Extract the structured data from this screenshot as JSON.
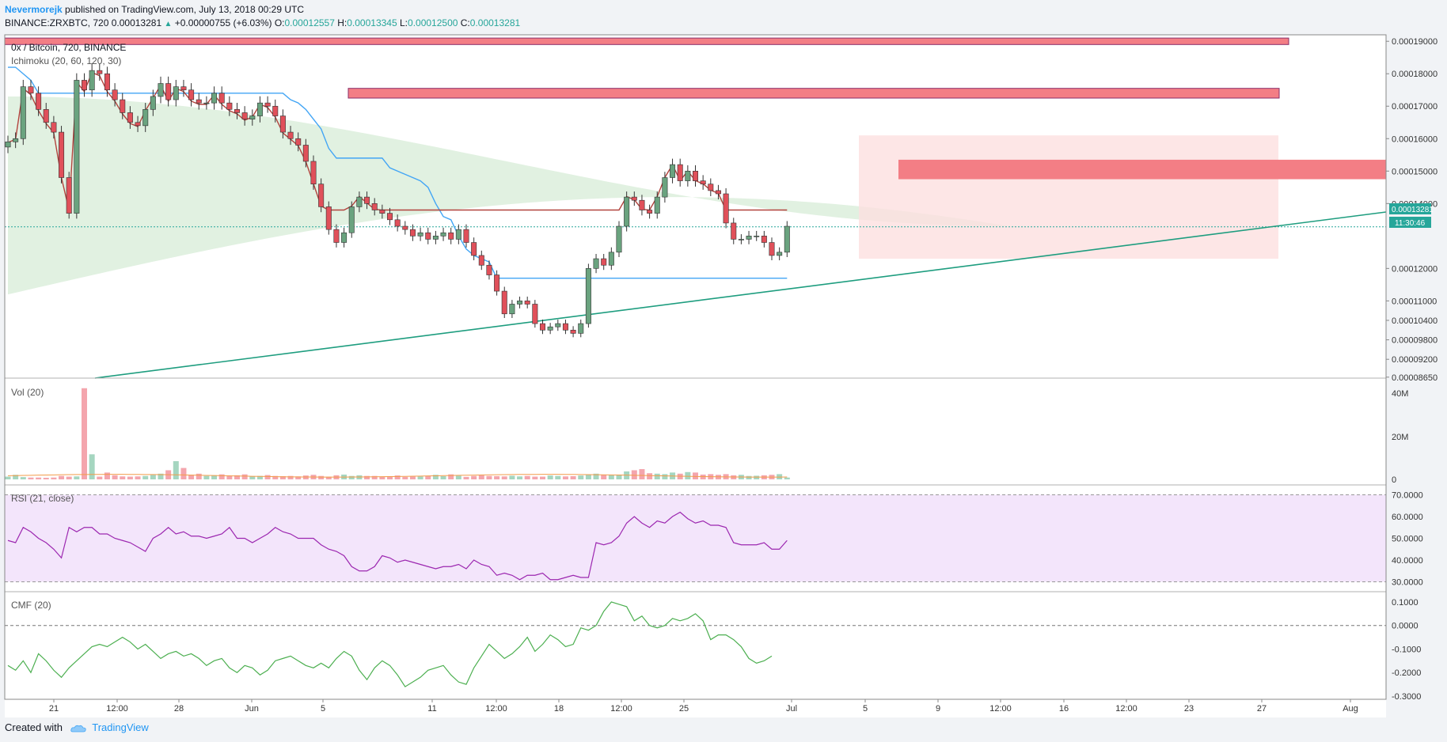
{
  "header": {
    "author": "Nevermorejk",
    "published": " published on TradingView.com, July 13, 2018 00:29 UTC"
  },
  "symbol_line": {
    "symbol": "BINANCE:ZRXBTC, 720",
    "last": "0.00013281",
    "change": "+0.00000755 (+6.03%)",
    "o_label": "O:",
    "o": "0.00012557",
    "h_label": "H:",
    "h": "0.00013345",
    "l_label": "L:",
    "l": "0.00012500",
    "c_label": "C:",
    "c": "0.00013281"
  },
  "panes": {
    "main_title": "0x / Bitcoin, 720, BINANCE",
    "ichimoku": "Ichimoku (20, 60, 120, 30)",
    "vol": "Vol (20)",
    "rsi": "RSI (21, close)",
    "cmf": "CMF (20)"
  },
  "last_price_tag": "0.00013281",
  "countdown_tag": "11:30:46",
  "footer": {
    "created": "Created with",
    "brand": "TradingView"
  },
  "colors": {
    "up": "#26a69a",
    "up_body": "#6aa37f",
    "down": "#e0505a",
    "kijun": "#b2433d",
    "tenkan": "#42a5f5",
    "cloud_green": "#dcefdc",
    "cloud_red": "#fde0e0",
    "zone": "#f37e85",
    "trend": "#1e9d7f",
    "rsi_line": "#9c27b0",
    "rsi_bg": "#f3e5fb",
    "cmf_line": "#4caf50"
  },
  "chart_data": [
    {
      "type": "candlestick",
      "title": "0x / Bitcoin, 720, BINANCE",
      "indicator": "Ichimoku (20, 60, 120, 30)",
      "price_axis_ticks": [
        "0.00019000",
        "0.00018000",
        "0.00017000",
        "0.00016000",
        "0.00015000",
        "0.00014000",
        "0.00013281",
        "0.00012000",
        "0.00011000",
        "0.00010400",
        "0.00009800",
        "0.00009200",
        "0.00008650"
      ],
      "time_axis_ticks": [
        "21",
        "12:00",
        "28",
        "Jun",
        "5",
        "11",
        "12:00",
        "18",
        "12:00",
        "25",
        "Jul",
        "5",
        "9",
        "12:00",
        "16",
        "12:00",
        "23",
        "27",
        "Aug"
      ],
      "ylim": [
        8.62e-05,
        0.000192
      ],
      "close": [
        0.000159,
        0.00016,
        0.000176,
        0.000174,
        0.000169,
        0.000165,
        0.000162,
        0.000148,
        0.000137,
        0.000178,
        0.000175,
        0.000181,
        0.00018,
        0.000175,
        0.000172,
        0.000168,
        0.000165,
        0.000164,
        0.000169,
        0.000173,
        0.000177,
        0.000172,
        0.000176,
        0.000175,
        0.000172,
        0.000171,
        0.000171,
        0.000174,
        0.000171,
        0.000169,
        0.000168,
        0.000166,
        0.000167,
        0.000171,
        0.00017,
        0.000167,
        0.000162,
        0.00016,
        0.000158,
        0.000153,
        0.000146,
        0.000139,
        0.000132,
        0.000128,
        0.000131,
        0.000139,
        0.000142,
        0.00014,
        0.000138,
        0.000137,
        0.000135,
        0.000133,
        0.000132,
        0.00013,
        0.000131,
        0.000129,
        0.00013,
        0.000131,
        0.000129,
        0.000132,
        0.000128,
        0.000124,
        0.000121,
        0.000118,
        0.000113,
        0.000106,
        0.000109,
        0.00011,
        0.000109,
        0.000103,
        0.000101,
        0.000102,
        0.000103,
        0.000101,
        0.0001,
        0.000103,
        0.00012,
        0.000123,
        0.000121,
        0.000125,
        0.000133,
        0.000142,
        0.000141,
        0.000138,
        0.000137,
        0.000142,
        0.000148,
        0.000152,
        0.000147,
        0.00015,
        0.000147,
        0.000146,
        0.000144,
        0.000143,
        0.000134,
        0.000129,
        0.000129,
        0.00013,
        0.00013,
        0.000128,
        0.000124,
        0.000125,
        0.000133
      ],
      "tenkan": [
        0.000182,
        0.000182,
        0.00018,
        0.000178,
        0.000174,
        0.000174,
        0.000174,
        0.000174,
        0.000174,
        0.000174,
        0.000174,
        0.000174,
        0.000174,
        0.000174,
        0.000174,
        0.000174,
        0.000174,
        0.000174,
        0.000174,
        0.000174,
        0.000174,
        0.000174,
        0.000174,
        0.000174,
        0.000174,
        0.000174,
        0.000174,
        0.000174,
        0.000174,
        0.000174,
        0.000174,
        0.000174,
        0.000174,
        0.000174,
        0.000174,
        0.000174,
        0.000174,
        0.000172,
        0.000171,
        0.000169,
        0.000166,
        0.000163,
        0.000157,
        0.000154,
        0.000154,
        0.000154,
        0.000154,
        0.000154,
        0.000154,
        0.000154,
        0.000151,
        0.00015,
        0.000149,
        0.000148,
        0.000147,
        0.000145,
        0.00014,
        0.000136,
        0.000135,
        0.00013,
        0.000126,
        0.000124,
        0.000123,
        0.000122,
        0.000117,
        0.000117,
        0.000117,
        0.000117,
        0.000117,
        0.000117,
        0.000117,
        0.000117,
        0.000117,
        0.000117,
        0.000117,
        0.000117,
        0.000117,
        0.000117,
        0.000117,
        0.000117,
        0.000117,
        0.000117,
        0.000117,
        0.000117,
        0.000117,
        0.000117,
        0.000117,
        0.000117,
        0.000117,
        0.000117,
        0.000117,
        0.000117,
        0.000117,
        0.000117,
        0.000117,
        0.000117,
        0.000117,
        0.000117,
        0.000117,
        0.000117,
        0.000117,
        0.000117,
        0.000117
      ],
      "volume": [
        1.2,
        2,
        1,
        0.8,
        0.8,
        0.7,
        0.8,
        1.5,
        1.2,
        1.3,
        40,
        11,
        1.2,
        3,
        1.8,
        1.3,
        1.2,
        1.3,
        1.5,
        2,
        2.5,
        4,
        8,
        5,
        2,
        2.5,
        1.5,
        1.8,
        2.2,
        1.6,
        1.8,
        2.2,
        1.4,
        1.5,
        1.9,
        1.5,
        1.4,
        1.5,
        1.3,
        1.7,
        2,
        1.5,
        1.2,
        1.8,
        2.1,
        1.5,
        1.8,
        1.5,
        1.5,
        1.2,
        1.4,
        1.7,
        1.1,
        1.2,
        1.3,
        1.4,
        2,
        1.4,
        2.2,
        1.6,
        1.1,
        1.5,
        1.8,
        1.5,
        1.4,
        1.3,
        1.6,
        1.3,
        1.5,
        1.2,
        1.2,
        1.7,
        1.5,
        1.3,
        1.4,
        1.7,
        2.2,
        2.5,
        2,
        2,
        2.1,
        3.5,
        4,
        4.5,
        2.7,
        2.5,
        2.3,
        3,
        2.5,
        3.2,
        3,
        2.1,
        2.3,
        2,
        2.3,
        1.8,
        2,
        1.5,
        1.6,
        1.8,
        2,
        2.3,
        0.8
      ],
      "vol_axis_ticks": [
        "40M",
        "20M",
        "0"
      ],
      "rsi": [
        49,
        48,
        55,
        53,
        50,
        48,
        45,
        41,
        55,
        53,
        55,
        55,
        52,
        52,
        50,
        49,
        48,
        46,
        44,
        50,
        52,
        55,
        52,
        53,
        51,
        51,
        50,
        51,
        52,
        55,
        50,
        50,
        48,
        50,
        52,
        55,
        53,
        52,
        50,
        50,
        50,
        47,
        45,
        44,
        42,
        37,
        35,
        35,
        37,
        42,
        41,
        39,
        40,
        39,
        38,
        37,
        36,
        37,
        37,
        38,
        36,
        40,
        38,
        37,
        33,
        34,
        33,
        31,
        33,
        33,
        34,
        31,
        31,
        32,
        33,
        32,
        32,
        48,
        47,
        48,
        51,
        57,
        60,
        57,
        55,
        58,
        57,
        60,
        62,
        59,
        57,
        58,
        56,
        56,
        55,
        48,
        47,
        47,
        47,
        48,
        45,
        45,
        49
      ],
      "rsi_axis_ticks": [
        "70.0000",
        "60.0000",
        "50.0000",
        "40.0000",
        "30.0000"
      ],
      "cmf": [
        -0.17,
        -0.19,
        -0.15,
        -0.2,
        -0.12,
        -0.15,
        -0.19,
        -0.22,
        -0.18,
        -0.15,
        -0.12,
        -0.09,
        -0.08,
        -0.09,
        -0.07,
        -0.05,
        -0.07,
        -0.1,
        -0.08,
        -0.11,
        -0.14,
        -0.12,
        -0.11,
        -0.13,
        -0.12,
        -0.14,
        -0.17,
        -0.15,
        -0.14,
        -0.18,
        -0.2,
        -0.17,
        -0.18,
        -0.21,
        -0.19,
        -0.15,
        -0.14,
        -0.13,
        -0.15,
        -0.17,
        -0.18,
        -0.16,
        -0.18,
        -0.14,
        -0.11,
        -0.13,
        -0.19,
        -0.23,
        -0.18,
        -0.15,
        -0.17,
        -0.21,
        -0.26,
        -0.24,
        -0.22,
        -0.19,
        -0.18,
        -0.17,
        -0.21,
        -0.24,
        -0.25,
        -0.18,
        -0.13,
        -0.08,
        -0.11,
        -0.14,
        -0.12,
        -0.09,
        -0.05,
        -0.11,
        -0.08,
        -0.04,
        -0.06,
        -0.09,
        -0.08,
        -0.01,
        -0.02,
        0.0,
        0.06,
        0.1,
        0.09,
        0.08,
        0.02,
        0.04,
        0.0,
        -0.01,
        0.0,
        0.03,
        0.02,
        0.03,
        0.05,
        0.02,
        -0.06,
        -0.04,
        -0.04,
        -0.06,
        -0.09,
        -0.14,
        -0.16,
        -0.15,
        -0.13
      ],
      "cmf_axis_ticks": [
        "0.1000",
        "0.0000",
        "-0.1000",
        "-0.2000",
        "-0.3000"
      ]
    }
  ]
}
